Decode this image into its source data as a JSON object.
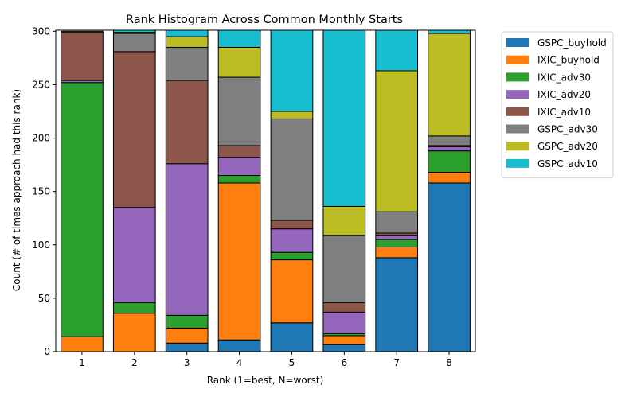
{
  "chart_data": {
    "type": "bar",
    "stacked": true,
    "title": "Rank Histogram Across Common Monthly Starts",
    "xlabel": "Rank (1=best, N=worst)",
    "ylabel": "Count (# of times approach had this rank)",
    "categories": [
      "1",
      "2",
      "3",
      "4",
      "5",
      "6",
      "7",
      "8"
    ],
    "ylim": [
      0,
      301
    ],
    "yticks": [
      0,
      50,
      100,
      150,
      200,
      250,
      300
    ],
    "grid": false,
    "legend_position": "outside-right",
    "series": [
      {
        "name": "GSPC_buyhold",
        "color": "#1f77b4",
        "values": [
          0,
          0,
          8,
          11,
          27,
          7,
          88,
          158
        ]
      },
      {
        "name": "IXIC_buyhold",
        "color": "#ff7f0e",
        "values": [
          14,
          36,
          14,
          147,
          59,
          8,
          10,
          10
        ]
      },
      {
        "name": "IXIC_adv30",
        "color": "#2ca02c",
        "values": [
          238,
          10,
          12,
          7,
          7,
          2,
          7,
          20
        ]
      },
      {
        "name": "IXIC_adv20",
        "color": "#9467bd",
        "values": [
          2,
          89,
          142,
          17,
          22,
          20,
          4,
          4
        ]
      },
      {
        "name": "IXIC_adv10",
        "color": "#8c564b",
        "values": [
          45,
          146,
          78,
          11,
          8,
          9,
          2,
          1
        ]
      },
      {
        "name": "GSPC_adv30",
        "color": "#7f7f7f",
        "values": [
          1,
          17,
          31,
          64,
          95,
          63,
          20,
          9
        ]
      },
      {
        "name": "GSPC_adv20",
        "color": "#bcbd22",
        "values": [
          0,
          1,
          10,
          28,
          7,
          27,
          132,
          96
        ]
      },
      {
        "name": "GSPC_adv10",
        "color": "#17becf",
        "values": [
          0,
          2,
          6,
          16,
          76,
          165,
          38,
          3
        ]
      }
    ]
  }
}
